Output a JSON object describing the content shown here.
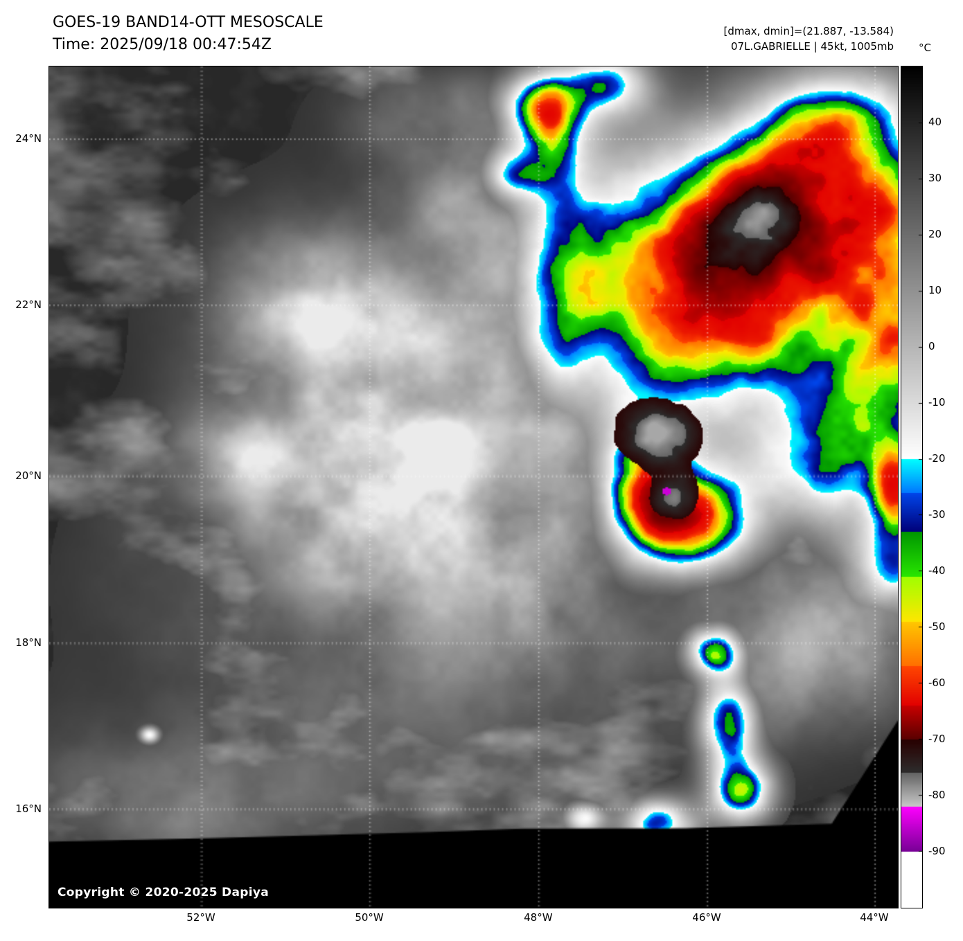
{
  "header": {
    "title": "GOES-19 BAND14-OTT MESOSCALE",
    "time_line": "Time: 2025/09/18 00:47:54Z",
    "range_line": "[dmax, dmin]=(21.887, -13.584)",
    "storm_line": "07L.GABRIELLE | 45kt, 1005mb"
  },
  "map": {
    "copyright": "Copyright © 2020-2025 Dapiya",
    "lat_labels": [
      "24°N",
      "22°N",
      "20°N",
      "18°N",
      "16°N"
    ],
    "lon_labels": [
      "52°W",
      "50°W",
      "48°W",
      "46°W",
      "44°W"
    ]
  },
  "colorbar": {
    "unit": "°C",
    "tick_labels": [
      "40",
      "30",
      "20",
      "10",
      "0",
      "-10",
      "-20",
      "-30",
      "-40",
      "-50",
      "-60",
      "-70",
      "-80",
      "-90"
    ]
  }
}
